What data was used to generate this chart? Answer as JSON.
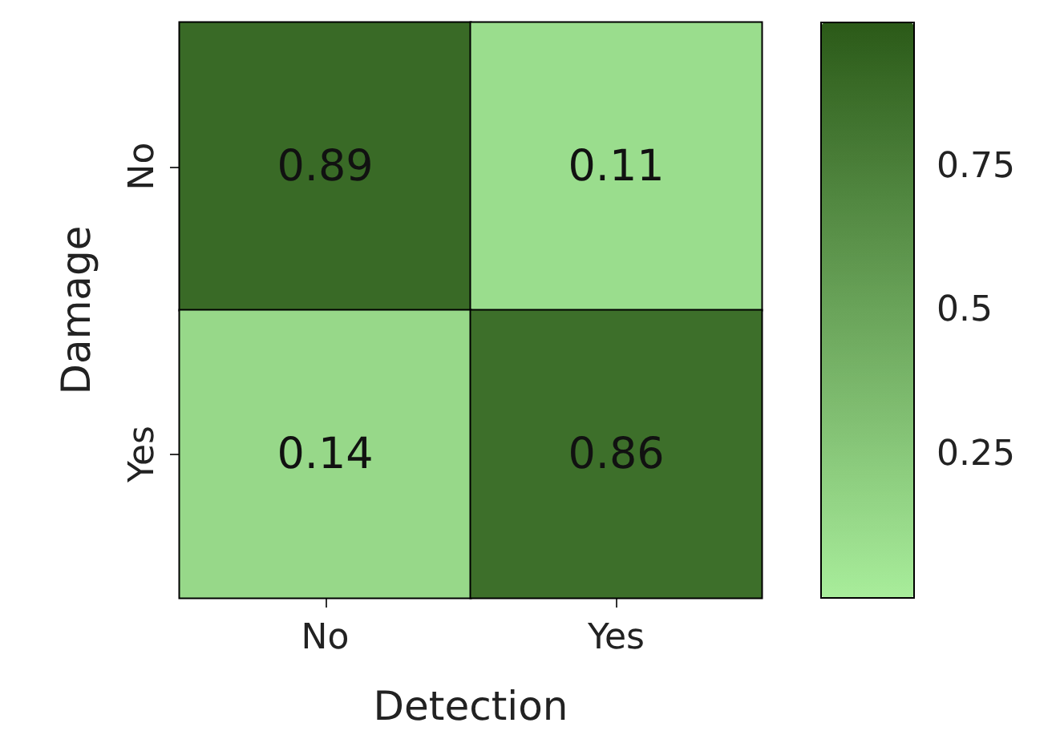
{
  "chart_data": {
    "type": "heatmap",
    "xlabel": "Detection",
    "ylabel": "Damage",
    "categories": [
      "No",
      "Yes"
    ],
    "y_categories": [
      "No",
      "Yes"
    ],
    "cells": [
      [
        0.89,
        0.11
      ],
      [
        0.14,
        0.86
      ]
    ],
    "clim": [
      0,
      1
    ],
    "cticks": [
      0.25,
      0.5,
      0.75
    ],
    "data_labels": true
  }
}
